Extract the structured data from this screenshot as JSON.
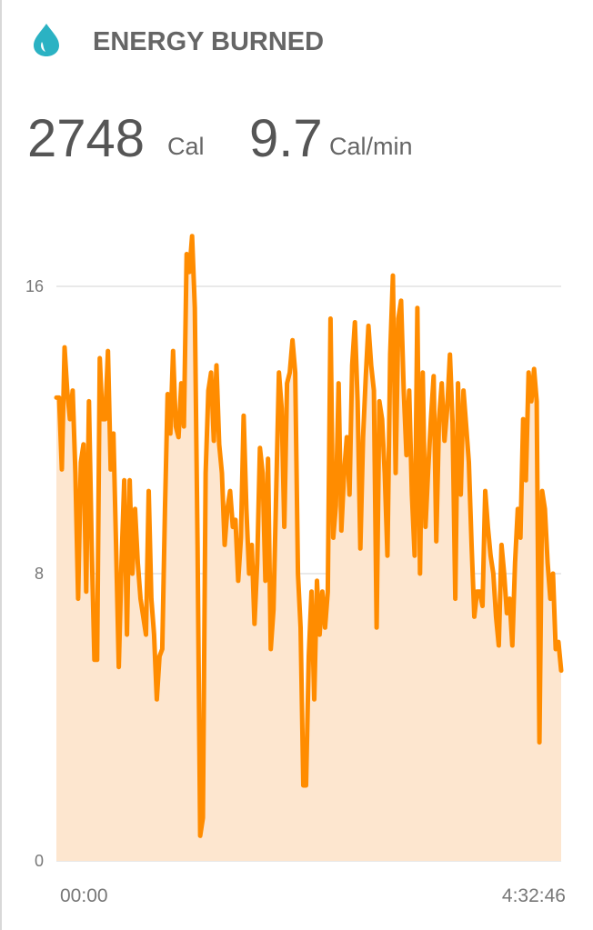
{
  "header": {
    "title": "ENERGY BURNED"
  },
  "stats": [
    {
      "value": 2748,
      "unit": "Cal"
    },
    {
      "value": 9.7,
      "unit": "Cal/min"
    }
  ],
  "chart_data": {
    "type": "line",
    "color": "#ff8c00",
    "fill_color": "#fde6cf",
    "ylim": [
      0,
      18
    ],
    "yticks": [
      0,
      8,
      16
    ],
    "grid": true,
    "xlim": [
      0,
      16366
    ],
    "xticks": [
      {
        "value": 0,
        "label": "00:00"
      },
      {
        "value": 16366,
        "label": "4:32:46"
      }
    ],
    "values": [
      12.9,
      12.9,
      10.9,
      14.3,
      13.1,
      12.3,
      13.1,
      10.8,
      7.3,
      11.1,
      11.6,
      7.5,
      12.8,
      8.8,
      5.6,
      5.6,
      14.0,
      12.3,
      12.3,
      14.2,
      10.9,
      11.9,
      8.8,
      5.4,
      8.3,
      10.6,
      6.3,
      10.6,
      8.0,
      9.8,
      8.3,
      7.3,
      6.8,
      6.3,
      10.3,
      7.3,
      6.3,
      4.5,
      5.7,
      5.9,
      9.8,
      13.0,
      11.9,
      14.2,
      12.1,
      11.8,
      13.3,
      12.1,
      16.9,
      16.4,
      17.4,
      15.4,
      8.8,
      0.7,
      1.2,
      10.8,
      13.1,
      13.6,
      11.7,
      13.8,
      11.6,
      10.8,
      8.8,
      9.8,
      10.3,
      9.3,
      9.5,
      7.8,
      9.0,
      12.4,
      9.8,
      8.0,
      8.8,
      6.6,
      8.3,
      11.5,
      10.8,
      7.8,
      11.2,
      5.9,
      7.0,
      10.3,
      13.6,
      12.6,
      9.3,
      13.3,
      13.6,
      14.5,
      13.6,
      8.0,
      6.5,
      2.1,
      2.1,
      5.7,
      7.5,
      4.5,
      7.8,
      6.3,
      7.5,
      6.5,
      7.5,
      15.1,
      9.0,
      9.9,
      13.3,
      9.2,
      10.8,
      11.8,
      10.2,
      13.8,
      15.0,
      12.8,
      8.7,
      11.8,
      13.5,
      14.9,
      13.8,
      13.1,
      6.5,
      12.8,
      12.3,
      10.8,
      8.5,
      14.1,
      16.3,
      10.8,
      15.1,
      15.6,
      13.1,
      11.3,
      13.1,
      10.2,
      8.5,
      15.4,
      8.0,
      13.6,
      9.3,
      10.9,
      12.3,
      13.5,
      8.9,
      12.3,
      13.3,
      11.7,
      12.6,
      14.1,
      12.2,
      7.3,
      13.3,
      10.2,
      13.1,
      12.1,
      11.1,
      8.8,
      6.8,
      7.5,
      7.5,
      7.1,
      10.3,
      9.3,
      8.5,
      8.0,
      6.8,
      6.0,
      8.8,
      8.0,
      6.9,
      7.3,
      6.0,
      8.3,
      9.8,
      9.0,
      12.3,
      10.6,
      13.6,
      12.8,
      13.7,
      12.8,
      3.3,
      10.3,
      9.8,
      8.3,
      7.3,
      8.0,
      5.9,
      6.1,
      5.3
    ]
  }
}
